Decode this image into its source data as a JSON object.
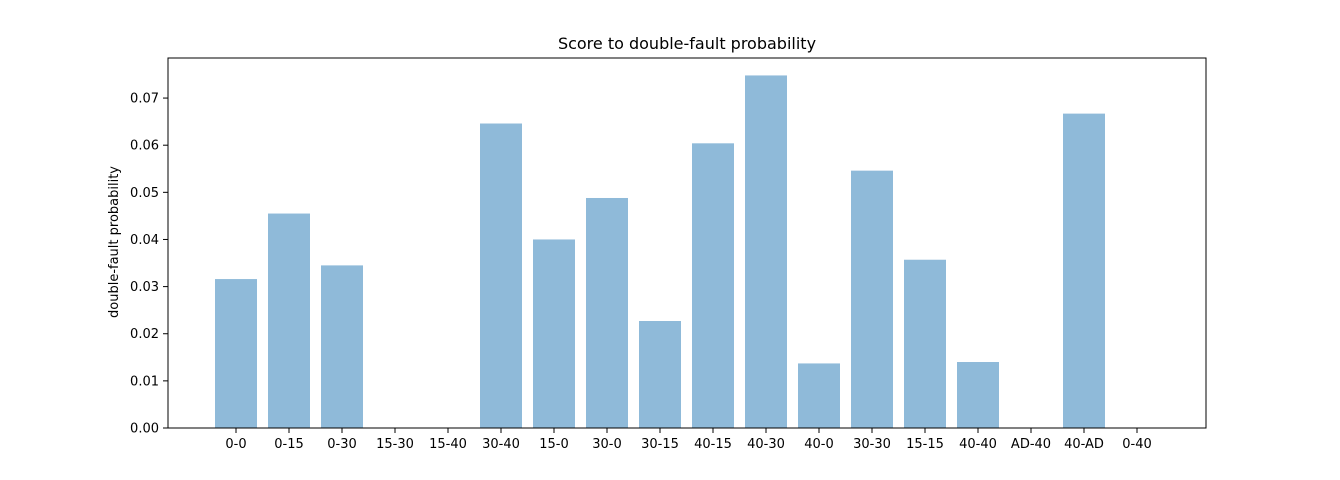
{
  "chart_data": {
    "type": "bar",
    "title": "Score to double-fault probability",
    "xlabel": "",
    "ylabel": "double-fault probability",
    "categories": [
      "0-0",
      "0-15",
      "0-30",
      "15-30",
      "15-40",
      "30-40",
      "15-0",
      "30-0",
      "30-15",
      "40-15",
      "40-30",
      "40-0",
      "30-30",
      "15-15",
      "40-40",
      "AD-40",
      "40-AD",
      "0-40"
    ],
    "values": [
      0.0316,
      0.0455,
      0.0345,
      0.0,
      0.0,
      0.0646,
      0.04,
      0.0488,
      0.0227,
      0.0604,
      0.0748,
      0.0137,
      0.0546,
      0.0357,
      0.014,
      0.0,
      0.0667,
      0.0
    ],
    "ylim": [
      0,
      0.0785
    ],
    "yticks": [
      0.0,
      0.01,
      0.02,
      0.03,
      0.04,
      0.05,
      0.06,
      0.07
    ],
    "ytick_labels": [
      "0.00",
      "0.01",
      "0.02",
      "0.03",
      "0.04",
      "0.05",
      "0.06",
      "0.07"
    ],
    "grid": false,
    "bar_color": "#8fbad9"
  }
}
